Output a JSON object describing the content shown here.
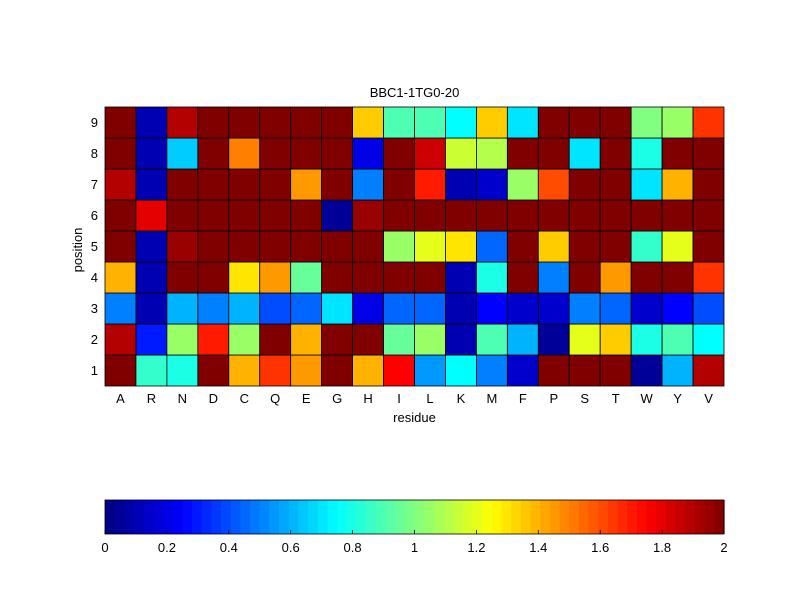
{
  "chart_data": {
    "type": "heatmap",
    "title": "BBC1-1TG0-20",
    "xlabel": "residue",
    "ylabel": "position",
    "x_categories": [
      "A",
      "R",
      "N",
      "D",
      "C",
      "Q",
      "E",
      "G",
      "H",
      "I",
      "L",
      "K",
      "M",
      "F",
      "P",
      "S",
      "T",
      "W",
      "Y",
      "V"
    ],
    "y_categories": [
      "1",
      "2",
      "3",
      "4",
      "5",
      "6",
      "7",
      "8",
      "9"
    ],
    "values": [
      [
        2.0,
        0.85,
        0.8,
        2.0,
        1.4,
        1.65,
        1.45,
        2.0,
        1.4,
        1.75,
        0.55,
        0.75,
        0.5,
        0.15,
        2.0,
        2.0,
        2.0,
        0.05,
        0.6,
        1.9
      ],
      [
        1.9,
        0.3,
        1.05,
        1.7,
        1.05,
        2.0,
        1.4,
        2.0,
        2.0,
        0.95,
        1.05,
        0.1,
        0.9,
        0.6,
        0.05,
        1.2,
        1.35,
        0.8,
        0.9,
        0.75
      ],
      [
        0.5,
        0.1,
        0.6,
        0.5,
        0.6,
        0.4,
        0.45,
        0.7,
        0.2,
        0.45,
        0.45,
        0.1,
        0.25,
        0.15,
        0.15,
        0.5,
        0.45,
        0.15,
        0.25,
        0.4
      ],
      [
        1.4,
        0.1,
        2.0,
        2.0,
        1.3,
        1.45,
        0.95,
        2.0,
        2.0,
        2.0,
        2.0,
        0.1,
        0.8,
        2.0,
        0.5,
        2.0,
        1.45,
        2.0,
        2.0,
        1.65
      ],
      [
        2.0,
        0.1,
        1.95,
        2.0,
        2.0,
        2.0,
        2.0,
        2.0,
        2.0,
        1.05,
        1.2,
        1.3,
        0.45,
        2.0,
        1.35,
        2.0,
        2.0,
        0.85,
        1.2,
        2.0
      ],
      [
        2.0,
        1.8,
        2.0,
        2.0,
        2.0,
        2.0,
        2.0,
        0.05,
        1.95,
        2.0,
        2.0,
        2.0,
        2.0,
        2.0,
        2.0,
        2.0,
        2.0,
        2.0,
        2.0,
        2.0
      ],
      [
        1.9,
        0.1,
        2.0,
        2.0,
        2.0,
        2.0,
        1.45,
        2.0,
        0.5,
        2.0,
        1.7,
        0.1,
        0.15,
        1.05,
        1.6,
        2.0,
        2.0,
        0.7,
        1.4,
        2.0
      ],
      [
        2.0,
        0.1,
        0.65,
        2.0,
        1.5,
        2.0,
        2.0,
        2.0,
        0.2,
        2.0,
        1.85,
        1.15,
        1.1,
        2.0,
        2.0,
        0.7,
        2.0,
        0.8,
        2.0,
        2.0
      ],
      [
        2.0,
        0.1,
        1.9,
        2.0,
        2.0,
        2.0,
        2.0,
        2.0,
        1.35,
        0.9,
        0.9,
        0.75,
        1.35,
        0.7,
        2.0,
        2.0,
        2.0,
        1.0,
        1.05,
        1.65
      ]
    ],
    "colorbar": {
      "range": [
        0,
        2
      ],
      "ticks": [
        "0",
        "0.2",
        "0.4",
        "0.6",
        "0.8",
        "1",
        "1.2",
        "1.4",
        "1.6",
        "1.8",
        "2"
      ],
      "colormap": "jet"
    }
  }
}
